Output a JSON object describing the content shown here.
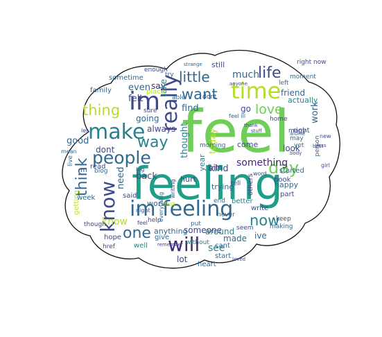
{
  "palette": {
    "background": "#ffffff",
    "outline": "#111111",
    "cloud_fill": "#ffffff",
    "viridis": [
      "#440154",
      "#482878",
      "#3e4989",
      "#31688e",
      "#26828e",
      "#1f9e89",
      "#35b779",
      "#6ece58",
      "#b5de2b",
      "#fde725"
    ]
  },
  "words": [
    {
      "text": "feel",
      "color": "#6ece58"
    },
    {
      "text": "feeling",
      "color": "#1f9e89"
    },
    {
      "text": "im feeling",
      "color": "#31688e"
    },
    {
      "text": "time",
      "color": "#b5de2b"
    },
    {
      "text": "im",
      "color": "#3e4989"
    },
    {
      "text": "know",
      "color": "#3e4989"
    },
    {
      "text": "make",
      "color": "#26828e"
    },
    {
      "text": "really",
      "color": "#3e4989"
    },
    {
      "text": "people",
      "color": "#31688e"
    },
    {
      "text": "will",
      "color": "#482878"
    },
    {
      "text": "thing",
      "color": "#b5de2b"
    },
    {
      "text": "little",
      "color": "#31688e"
    },
    {
      "text": "way",
      "color": "#26828e"
    },
    {
      "text": "life",
      "color": "#3e4989"
    },
    {
      "text": "want",
      "color": "#31688e"
    },
    {
      "text": "day",
      "color": "#6ece58"
    },
    {
      "text": "one",
      "color": "#31688e"
    },
    {
      "text": "think",
      "color": "#31688e"
    },
    {
      "text": "now",
      "color": "#26828e"
    },
    {
      "text": "love",
      "color": "#6ece58"
    },
    {
      "text": "much",
      "color": "#31688e"
    },
    {
      "text": "something",
      "color": "#482878"
    },
    {
      "text": "know",
      "color": "#b5de2b"
    },
    {
      "text": "even",
      "color": "#31688e"
    },
    {
      "text": "felt",
      "color": "#3e4989"
    },
    {
      "text": "go",
      "color": "#3e4989"
    },
    {
      "text": "good",
      "color": "#31688e"
    },
    {
      "text": "back",
      "color": "#3e4989"
    },
    {
      "text": "bit",
      "color": "#3e4989"
    },
    {
      "text": "see",
      "color": "#26828e"
    },
    {
      "text": "made",
      "color": "#31688e"
    },
    {
      "text": "find",
      "color": "#31688e"
    },
    {
      "text": "dont",
      "color": "#3e4989"
    },
    {
      "text": "friend",
      "color": "#31688e"
    },
    {
      "text": "work",
      "color": "#31688e"
    },
    {
      "text": "kind",
      "color": "#3e4989"
    },
    {
      "text": "today",
      "color": "#b5de2b"
    },
    {
      "text": "lot",
      "color": "#3e4989"
    },
    {
      "text": "around",
      "color": "#26828e"
    },
    {
      "text": "ive",
      "color": "#31688e"
    },
    {
      "text": "look",
      "color": "#3e4989"
    },
    {
      "text": "need",
      "color": "#31688e"
    },
    {
      "text": "say",
      "color": "#482878"
    },
    {
      "text": "thought",
      "color": "#26828e"
    },
    {
      "text": "going",
      "color": "#31688e"
    },
    {
      "text": "always",
      "color": "#3e4989"
    },
    {
      "text": "someone",
      "color": "#3e4989"
    },
    {
      "text": "take",
      "color": "#26828e"
    },
    {
      "text": "happy",
      "color": "#31688e"
    },
    {
      "text": "still",
      "color": "#3e4989"
    },
    {
      "text": "actually",
      "color": "#26828e"
    },
    {
      "text": "sometime",
      "color": "#31688e"
    },
    {
      "text": "year",
      "color": "#26828e"
    },
    {
      "text": "trying",
      "color": "#31688e"
    },
    {
      "text": "world",
      "color": "#31688e"
    },
    {
      "text": "anything",
      "color": "#31688e"
    },
    {
      "text": "hurt",
      "color": "#3e4989"
    },
    {
      "text": "come",
      "color": "#3e4989"
    },
    {
      "text": "family",
      "color": "#31688e"
    },
    {
      "text": "week",
      "color": "#31688e"
    },
    {
      "text": "read",
      "color": "#3e4989"
    },
    {
      "text": "said",
      "color": "#3e4989"
    },
    {
      "text": "well",
      "color": "#26828e"
    },
    {
      "text": "cant",
      "color": "#31688e"
    },
    {
      "text": "give",
      "color": "#31688e"
    },
    {
      "text": "getting",
      "color": "#b5de2b"
    },
    {
      "text": "hope",
      "color": "#3e4989"
    },
    {
      "text": "others",
      "color": "#3e4989"
    },
    {
      "text": "better",
      "color": "#26828e"
    },
    {
      "text": "write",
      "color": "#3e4989"
    },
    {
      "text": "start",
      "color": "#31688e"
    },
    {
      "text": "heart",
      "color": "#31688e"
    },
    {
      "text": "keep",
      "color": "#3e4989"
    },
    {
      "text": "making",
      "color": "#31688e"
    },
    {
      "text": "part",
      "color": "#3e4989"
    },
    {
      "text": "book",
      "color": "#3e4989"
    },
    {
      "text": "started",
      "color": "#31688e"
    },
    {
      "text": "person",
      "color": "#31688e"
    },
    {
      "text": "right",
      "color": "#3e4989"
    },
    {
      "text": "may",
      "color": "#31688e"
    },
    {
      "text": "many",
      "color": "#3e4989"
    },
    {
      "text": "home",
      "color": "#3e4989"
    },
    {
      "text": "left",
      "color": "#31688e"
    },
    {
      "text": "moment",
      "color": "#31688e"
    },
    {
      "text": "right now",
      "color": "#3e4989"
    },
    {
      "text": "enough",
      "color": "#3e4989"
    },
    {
      "text": "try",
      "color": "#31688e"
    },
    {
      "text": "place",
      "color": "#b5de2b"
    },
    {
      "text": "able",
      "color": "#31688e"
    },
    {
      "text": "sure",
      "color": "#3e4989"
    },
    {
      "text": "tell",
      "color": "#3e4989"
    },
    {
      "text": "never",
      "color": "#31688e"
    },
    {
      "text": "end",
      "color": "#31688e"
    },
    {
      "text": "morning",
      "color": "#31688e"
    },
    {
      "text": "blog",
      "color": "#31688e"
    },
    {
      "text": "href",
      "color": "#3e4989"
    },
    {
      "text": "though",
      "color": "#3e4989"
    },
    {
      "text": "help",
      "color": "#3e4989"
    },
    {
      "text": "put",
      "color": "#31688e"
    },
    {
      "text": "without",
      "color": "#26828e"
    },
    {
      "text": "seem",
      "color": "#3e4989"
    },
    {
      "text": "live",
      "color": "#31688e"
    },
    {
      "text": "dont",
      "color": "#3e4989"
    },
    {
      "text": "mean",
      "color": "#31688e"
    },
    {
      "text": "feel ill",
      "color": "#31688e"
    },
    {
      "text": "yet",
      "color": "#31688e"
    },
    {
      "text": "alone",
      "color": "#31688e"
    },
    {
      "text": "m",
      "color": "#3e4989"
    },
    {
      "text": "first",
      "color": "#b5de2b"
    },
    {
      "text": "word",
      "color": "#3e4989"
    },
    {
      "text": "big",
      "color": "#3e4989"
    },
    {
      "text": "night",
      "color": "#3e4989"
    },
    {
      "text": "everything",
      "color": "#31688e"
    },
    {
      "text": "writing",
      "color": "#3e4989"
    },
    {
      "text": "feel",
      "color": "#3e4989"
    },
    {
      "text": "girl",
      "color": "#3e4989"
    },
    {
      "text": "let",
      "color": "#3e4989"
    },
    {
      "text": "strange",
      "color": "#31688e"
    },
    {
      "text": "anyone",
      "color": "#3e4989"
    },
    {
      "text": "loved",
      "color": "#3e4989"
    },
    {
      "text": "best",
      "color": "#3e4989"
    },
    {
      "text": "remember",
      "color": "#3e4989"
    },
    {
      "text": "stuff",
      "color": "#3e4989"
    },
    {
      "text": "body",
      "color": "#3e4989"
    },
    {
      "text": "new",
      "color": "#3e4989"
    },
    {
      "text": "less",
      "color": "#3e4989"
    },
    {
      "text": "thank",
      "color": "#3e4989"
    }
  ]
}
